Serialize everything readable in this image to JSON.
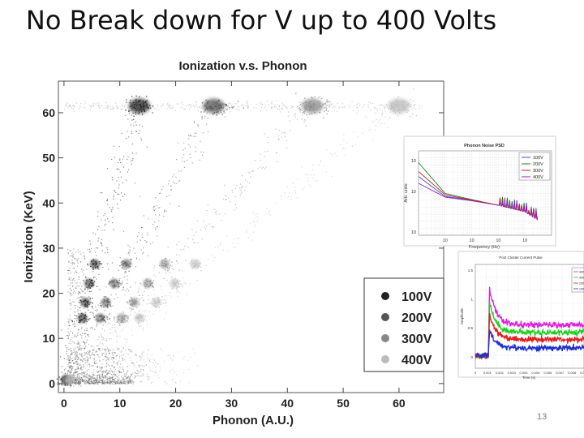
{
  "slide": {
    "title": "No Break down for V up to 400 Volts",
    "page_number": "13"
  },
  "chart_data": [
    {
      "type": "scatter",
      "title": "Ionization v.s. Phonon",
      "xlabel": "Phonon (A.U.)",
      "ylabel": "Ionization (KeV)",
      "xlim": [
        -1,
        68
      ],
      "ylim": [
        -2,
        67
      ],
      "xticks": [
        0,
        10,
        20,
        30,
        40,
        50,
        60
      ],
      "yticks": [
        0,
        10,
        20,
        30,
        40,
        50,
        60
      ],
      "legend_position": "bottom-right",
      "series": [
        {
          "name": "100V",
          "color": "#222222",
          "slope": 1.0,
          "clusters": [
            {
              "x": 13.5,
              "y": 61.5
            },
            {
              "x": 3.3,
              "y": 14.5
            },
            {
              "x": 3.8,
              "y": 18
            },
            {
              "x": 4.5,
              "y": 22.2
            },
            {
              "x": 5.5,
              "y": 26.5
            },
            {
              "x": 0.3,
              "y": 0.8
            }
          ]
        },
        {
          "name": "200V",
          "color": "#555555",
          "slope": 2.0,
          "clusters": [
            {
              "x": 26.8,
              "y": 61.5
            },
            {
              "x": 6.5,
              "y": 14.5
            },
            {
              "x": 7.5,
              "y": 18
            },
            {
              "x": 9.0,
              "y": 22.2
            },
            {
              "x": 11.2,
              "y": 26.5
            },
            {
              "x": 0.5,
              "y": 0.8
            }
          ]
        },
        {
          "name": "300V",
          "color": "#888888",
          "slope": 3.3,
          "clusters": [
            {
              "x": 44.5,
              "y": 61.5
            },
            {
              "x": 10.3,
              "y": 14.5
            },
            {
              "x": 12.5,
              "y": 18
            },
            {
              "x": 15.0,
              "y": 22.2
            },
            {
              "x": 18.0,
              "y": 26.5
            },
            {
              "x": 0.8,
              "y": 0.8
            }
          ]
        },
        {
          "name": "400V",
          "color": "#bbbbbb",
          "slope": 4.4,
          "clusters": [
            {
              "x": 60.0,
              "y": 61.5
            },
            {
              "x": 13.5,
              "y": 14.5
            },
            {
              "x": 16.5,
              "y": 18
            },
            {
              "x": 19.8,
              "y": 22.2
            },
            {
              "x": 23.5,
              "y": 26.5
            },
            {
              "x": 1.0,
              "y": 0.8
            }
          ]
        }
      ]
    },
    {
      "type": "line",
      "title": "Phonon Noise PSD",
      "xlabel": "Frequency (Hz)",
      "ylabel": "Arb. units",
      "xscale": "log",
      "yscale": "log",
      "xlim": [
        1,
        100000
      ],
      "ylim": [
        1e-10,
        1e-05
      ],
      "xticks": [
        10,
        100,
        1000,
        10000
      ],
      "xtick_labels": [
        "10",
        "10",
        "10",
        "10"
      ],
      "ytick_labels": [
        "10",
        "10",
        "10"
      ],
      "legend_position": "top-right",
      "series": [
        {
          "name": "100V",
          "color": "#3a4fd0",
          "x": [
            1,
            10,
            100,
            1000,
            10000,
            30000
          ],
          "y": [
            3e-07,
            2e-08,
            1.2e-08,
            6e-09,
            2.5e-09,
            1e-09
          ]
        },
        {
          "name": "200V",
          "color": "#2a7a2a",
          "x": [
            1,
            10,
            100,
            1000,
            10000,
            30000
          ],
          "y": [
            2e-06,
            3e-08,
            1.3e-08,
            6e-09,
            2.6e-09,
            1.1e-09
          ]
        },
        {
          "name": "300V",
          "color": "#c82020",
          "x": [
            1,
            10,
            100,
            1000,
            10000,
            30000
          ],
          "y": [
            6e-07,
            2.5e-08,
            1.2e-08,
            6e-09,
            2.5e-09,
            9e-10
          ]
        },
        {
          "name": "400V",
          "color": "#a020c0",
          "x": [
            1,
            10,
            100,
            1000,
            10000,
            30000
          ],
          "y": [
            1.2e-07,
            1.8e-08,
            1.1e-08,
            6e-09,
            2.4e-09,
            8e-10
          ]
        }
      ]
    },
    {
      "type": "line",
      "title": "Post Cluster Current Pulse",
      "xlabel": "Time (s)",
      "ylabel": "Amplitude",
      "ylim": [
        -0.2,
        1.6
      ],
      "yticks": [
        1.5,
        1.0,
        0.5,
        0
      ],
      "xtick_labels": [
        "0",
        "0.001",
        "0.002",
        "0.003",
        "0.004",
        "0.005",
        "0.006",
        "0.007",
        "0.008",
        "0.009"
      ],
      "legend_position": "top-right",
      "series": [
        {
          "name": "400V",
          "color": "#e020e0",
          "baseline": 0.02,
          "peak": 1.2,
          "tail": 0.55
        },
        {
          "name": "300V",
          "color": "#20d020",
          "baseline": 0.02,
          "peak": 0.95,
          "tail": 0.42
        },
        {
          "name": "200V",
          "color": "#e02020",
          "baseline": 0.02,
          "peak": 0.75,
          "tail": 0.3
        },
        {
          "name": "100V",
          "color": "#2030d0",
          "baseline": 0.02,
          "peak": 0.45,
          "tail": 0.15
        }
      ]
    }
  ]
}
